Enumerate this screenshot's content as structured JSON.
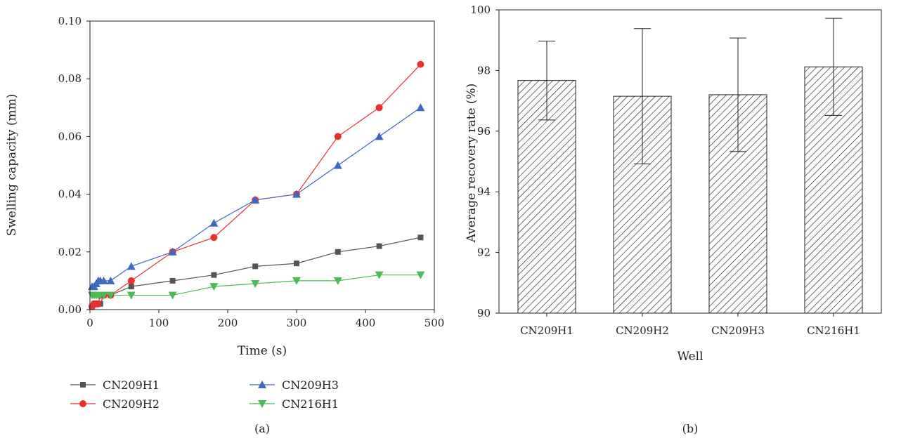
{
  "chart_data": [
    {
      "type": "line",
      "panel_label": "(a)",
      "xlabel": "Time (s)",
      "ylabel": "Swelling capacity (mm)",
      "xlim": [
        0,
        500
      ],
      "ylim": [
        0,
        0.1
      ],
      "xticks": [
        "0",
        "100",
        "200",
        "300",
        "400",
        "500"
      ],
      "yticks": [
        "0.00",
        "0.02",
        "0.04",
        "0.06",
        "0.08",
        "0.10"
      ],
      "grid": false,
      "legend_placement": "below",
      "series": [
        {
          "name": "CN209H1",
          "color": "#555555",
          "marker": "square",
          "x": [
            3,
            6,
            9,
            12,
            15,
            20,
            30,
            60,
            120,
            180,
            240,
            300,
            360,
            420,
            480
          ],
          "y": [
            0.001,
            0.002,
            0.002,
            0.002,
            0.002,
            0.005,
            0.005,
            0.008,
            0.01,
            0.012,
            0.015,
            0.016,
            0.02,
            0.022,
            0.025
          ]
        },
        {
          "name": "CN209H2",
          "color": "#e8302e",
          "marker": "circle",
          "x": [
            3,
            6,
            9,
            12,
            15,
            20,
            30,
            60,
            120,
            180,
            240,
            300,
            360,
            420,
            480
          ],
          "y": [
            0.001,
            0.002,
            0.002,
            0.002,
            0.005,
            0.005,
            0.005,
            0.01,
            0.02,
            0.025,
            0.038,
            0.04,
            0.06,
            0.07,
            0.085
          ]
        },
        {
          "name": "CN209H3",
          "color": "#3f68c0",
          "marker": "triangle-up",
          "x": [
            3,
            6,
            9,
            12,
            15,
            20,
            30,
            60,
            120,
            180,
            240,
            300,
            360,
            420,
            480
          ],
          "y": [
            0.008,
            0.008,
            0.009,
            0.01,
            0.01,
            0.01,
            0.01,
            0.015,
            0.02,
            0.03,
            0.038,
            0.04,
            0.05,
            0.06,
            0.07
          ]
        },
        {
          "name": "CN216H1",
          "color": "#4dbb55",
          "marker": "triangle-down",
          "x": [
            3,
            6,
            9,
            12,
            15,
            20,
            30,
            60,
            120,
            180,
            240,
            300,
            360,
            420,
            480
          ],
          "y": [
            0.005,
            0.005,
            0.005,
            0.005,
            0.005,
            0.005,
            0.005,
            0.005,
            0.005,
            0.008,
            0.009,
            0.01,
            0.01,
            0.012,
            0.012
          ]
        }
      ]
    },
    {
      "type": "bar",
      "panel_label": "(b)",
      "xlabel": "Well",
      "ylabel": "Average recovery rate (%)",
      "ylim": [
        90,
        100
      ],
      "yticks": [
        "90",
        "92",
        "94",
        "96",
        "98",
        "100"
      ],
      "categories": [
        "CN209H1",
        "CN209H2",
        "CN209H3",
        "CN216H1"
      ],
      "values": [
        97.67,
        97.15,
        97.2,
        98.12
      ],
      "errors": [
        1.3,
        2.23,
        1.87,
        1.6
      ],
      "fill": "hatched",
      "grid": false
    }
  ]
}
